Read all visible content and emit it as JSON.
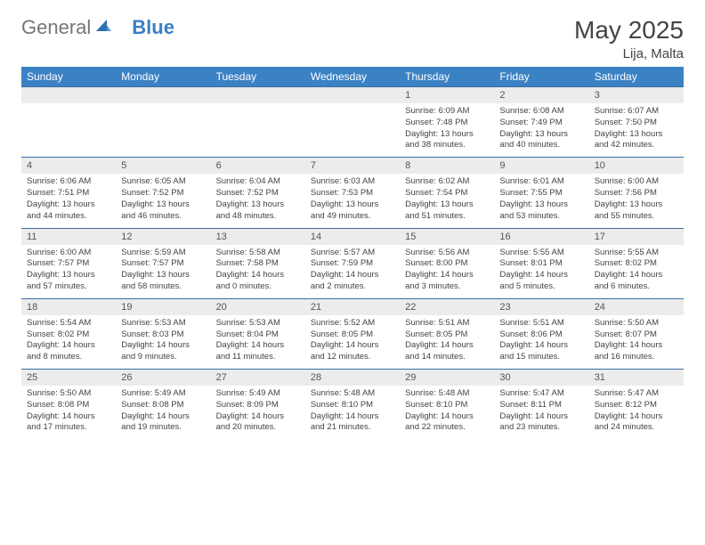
{
  "logo": {
    "text1": "General",
    "text2": "Blue"
  },
  "title": "May 2025",
  "location": "Lija, Malta",
  "colors": {
    "header_bg": "#3b82c4",
    "header_text": "#ffffff",
    "daynum_bg": "#ececec",
    "row_border": "#3b6fa0",
    "body_text": "#444444",
    "logo_gray": "#777777",
    "logo_blue": "#3b7fc4"
  },
  "day_headers": [
    "Sunday",
    "Monday",
    "Tuesday",
    "Wednesday",
    "Thursday",
    "Friday",
    "Saturday"
  ],
  "weeks": [
    {
      "nums": [
        "",
        "",
        "",
        "",
        "1",
        "2",
        "3"
      ],
      "cells": [
        null,
        null,
        null,
        null,
        {
          "sunrise": "6:09 AM",
          "sunset": "7:48 PM",
          "daylight": "13 hours and 38 minutes."
        },
        {
          "sunrise": "6:08 AM",
          "sunset": "7:49 PM",
          "daylight": "13 hours and 40 minutes."
        },
        {
          "sunrise": "6:07 AM",
          "sunset": "7:50 PM",
          "daylight": "13 hours and 42 minutes."
        }
      ]
    },
    {
      "nums": [
        "4",
        "5",
        "6",
        "7",
        "8",
        "9",
        "10"
      ],
      "cells": [
        {
          "sunrise": "6:06 AM",
          "sunset": "7:51 PM",
          "daylight": "13 hours and 44 minutes."
        },
        {
          "sunrise": "6:05 AM",
          "sunset": "7:52 PM",
          "daylight": "13 hours and 46 minutes."
        },
        {
          "sunrise": "6:04 AM",
          "sunset": "7:52 PM",
          "daylight": "13 hours and 48 minutes."
        },
        {
          "sunrise": "6:03 AM",
          "sunset": "7:53 PM",
          "daylight": "13 hours and 49 minutes."
        },
        {
          "sunrise": "6:02 AM",
          "sunset": "7:54 PM",
          "daylight": "13 hours and 51 minutes."
        },
        {
          "sunrise": "6:01 AM",
          "sunset": "7:55 PM",
          "daylight": "13 hours and 53 minutes."
        },
        {
          "sunrise": "6:00 AM",
          "sunset": "7:56 PM",
          "daylight": "13 hours and 55 minutes."
        }
      ]
    },
    {
      "nums": [
        "11",
        "12",
        "13",
        "14",
        "15",
        "16",
        "17"
      ],
      "cells": [
        {
          "sunrise": "6:00 AM",
          "sunset": "7:57 PM",
          "daylight": "13 hours and 57 minutes."
        },
        {
          "sunrise": "5:59 AM",
          "sunset": "7:57 PM",
          "daylight": "13 hours and 58 minutes."
        },
        {
          "sunrise": "5:58 AM",
          "sunset": "7:58 PM",
          "daylight": "14 hours and 0 minutes."
        },
        {
          "sunrise": "5:57 AM",
          "sunset": "7:59 PM",
          "daylight": "14 hours and 2 minutes."
        },
        {
          "sunrise": "5:56 AM",
          "sunset": "8:00 PM",
          "daylight": "14 hours and 3 minutes."
        },
        {
          "sunrise": "5:55 AM",
          "sunset": "8:01 PM",
          "daylight": "14 hours and 5 minutes."
        },
        {
          "sunrise": "5:55 AM",
          "sunset": "8:02 PM",
          "daylight": "14 hours and 6 minutes."
        }
      ]
    },
    {
      "nums": [
        "18",
        "19",
        "20",
        "21",
        "22",
        "23",
        "24"
      ],
      "cells": [
        {
          "sunrise": "5:54 AM",
          "sunset": "8:02 PM",
          "daylight": "14 hours and 8 minutes."
        },
        {
          "sunrise": "5:53 AM",
          "sunset": "8:03 PM",
          "daylight": "14 hours and 9 minutes."
        },
        {
          "sunrise": "5:53 AM",
          "sunset": "8:04 PM",
          "daylight": "14 hours and 11 minutes."
        },
        {
          "sunrise": "5:52 AM",
          "sunset": "8:05 PM",
          "daylight": "14 hours and 12 minutes."
        },
        {
          "sunrise": "5:51 AM",
          "sunset": "8:05 PM",
          "daylight": "14 hours and 14 minutes."
        },
        {
          "sunrise": "5:51 AM",
          "sunset": "8:06 PM",
          "daylight": "14 hours and 15 minutes."
        },
        {
          "sunrise": "5:50 AM",
          "sunset": "8:07 PM",
          "daylight": "14 hours and 16 minutes."
        }
      ]
    },
    {
      "nums": [
        "25",
        "26",
        "27",
        "28",
        "29",
        "30",
        "31"
      ],
      "cells": [
        {
          "sunrise": "5:50 AM",
          "sunset": "8:08 PM",
          "daylight": "14 hours and 17 minutes."
        },
        {
          "sunrise": "5:49 AM",
          "sunset": "8:08 PM",
          "daylight": "14 hours and 19 minutes."
        },
        {
          "sunrise": "5:49 AM",
          "sunset": "8:09 PM",
          "daylight": "14 hours and 20 minutes."
        },
        {
          "sunrise": "5:48 AM",
          "sunset": "8:10 PM",
          "daylight": "14 hours and 21 minutes."
        },
        {
          "sunrise": "5:48 AM",
          "sunset": "8:10 PM",
          "daylight": "14 hours and 22 minutes."
        },
        {
          "sunrise": "5:47 AM",
          "sunset": "8:11 PM",
          "daylight": "14 hours and 23 minutes."
        },
        {
          "sunrise": "5:47 AM",
          "sunset": "8:12 PM",
          "daylight": "14 hours and 24 minutes."
        }
      ]
    }
  ],
  "labels": {
    "sunrise": "Sunrise: ",
    "sunset": "Sunset: ",
    "daylight": "Daylight: "
  }
}
